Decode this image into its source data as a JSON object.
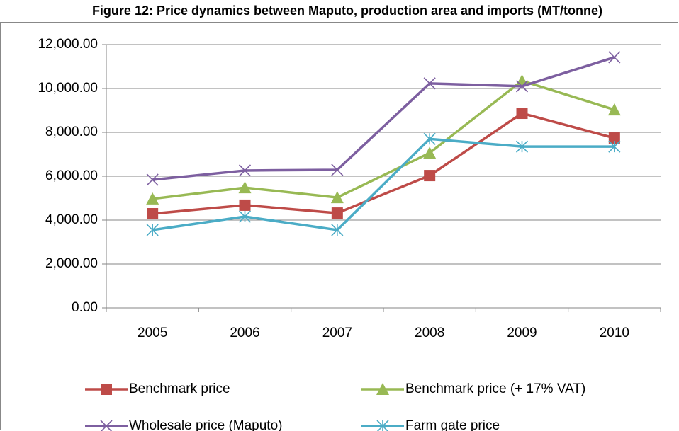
{
  "chart_data": {
    "type": "line",
    "title": "Figure 12: Price dynamics between Maputo, production area and imports (MT/tonne)",
    "categories": [
      "2005",
      "2006",
      "2007",
      "2008",
      "2009",
      "2010"
    ],
    "series": [
      {
        "name": "Benchmark price",
        "color": "#be4b48",
        "marker": "square",
        "values": [
          4290,
          4680,
          4320,
          6030,
          8870,
          7740
        ]
      },
      {
        "name": "Benchmark price (+ 17% VAT)",
        "color": "#98b954",
        "marker": "triangle",
        "values": [
          4970,
          5480,
          5030,
          7060,
          10350,
          9030
        ]
      },
      {
        "name": "Wholesale price (Maputo)",
        "color": "#7d5fa0",
        "marker": "x",
        "values": [
          5840,
          6260,
          6290,
          10230,
          10100,
          11420
        ]
      },
      {
        "name": "Farm gate price",
        "color": "#4bacc6",
        "marker": "star",
        "values": [
          3550,
          4160,
          3550,
          7700,
          7350,
          7350
        ]
      }
    ],
    "ylim": [
      0,
      12000
    ],
    "yticks": [
      {
        "value": 0,
        "label": "0.00"
      },
      {
        "value": 2000,
        "label": "2,000.00"
      },
      {
        "value": 4000,
        "label": "4,000.00"
      },
      {
        "value": 6000,
        "label": "6,000.00"
      },
      {
        "value": 8000,
        "label": "8,000.00"
      },
      {
        "value": 10000,
        "label": "10,000.00"
      },
      {
        "value": 12000,
        "label": "12,000.00"
      }
    ],
    "grid": true,
    "legend": "bottom"
  }
}
